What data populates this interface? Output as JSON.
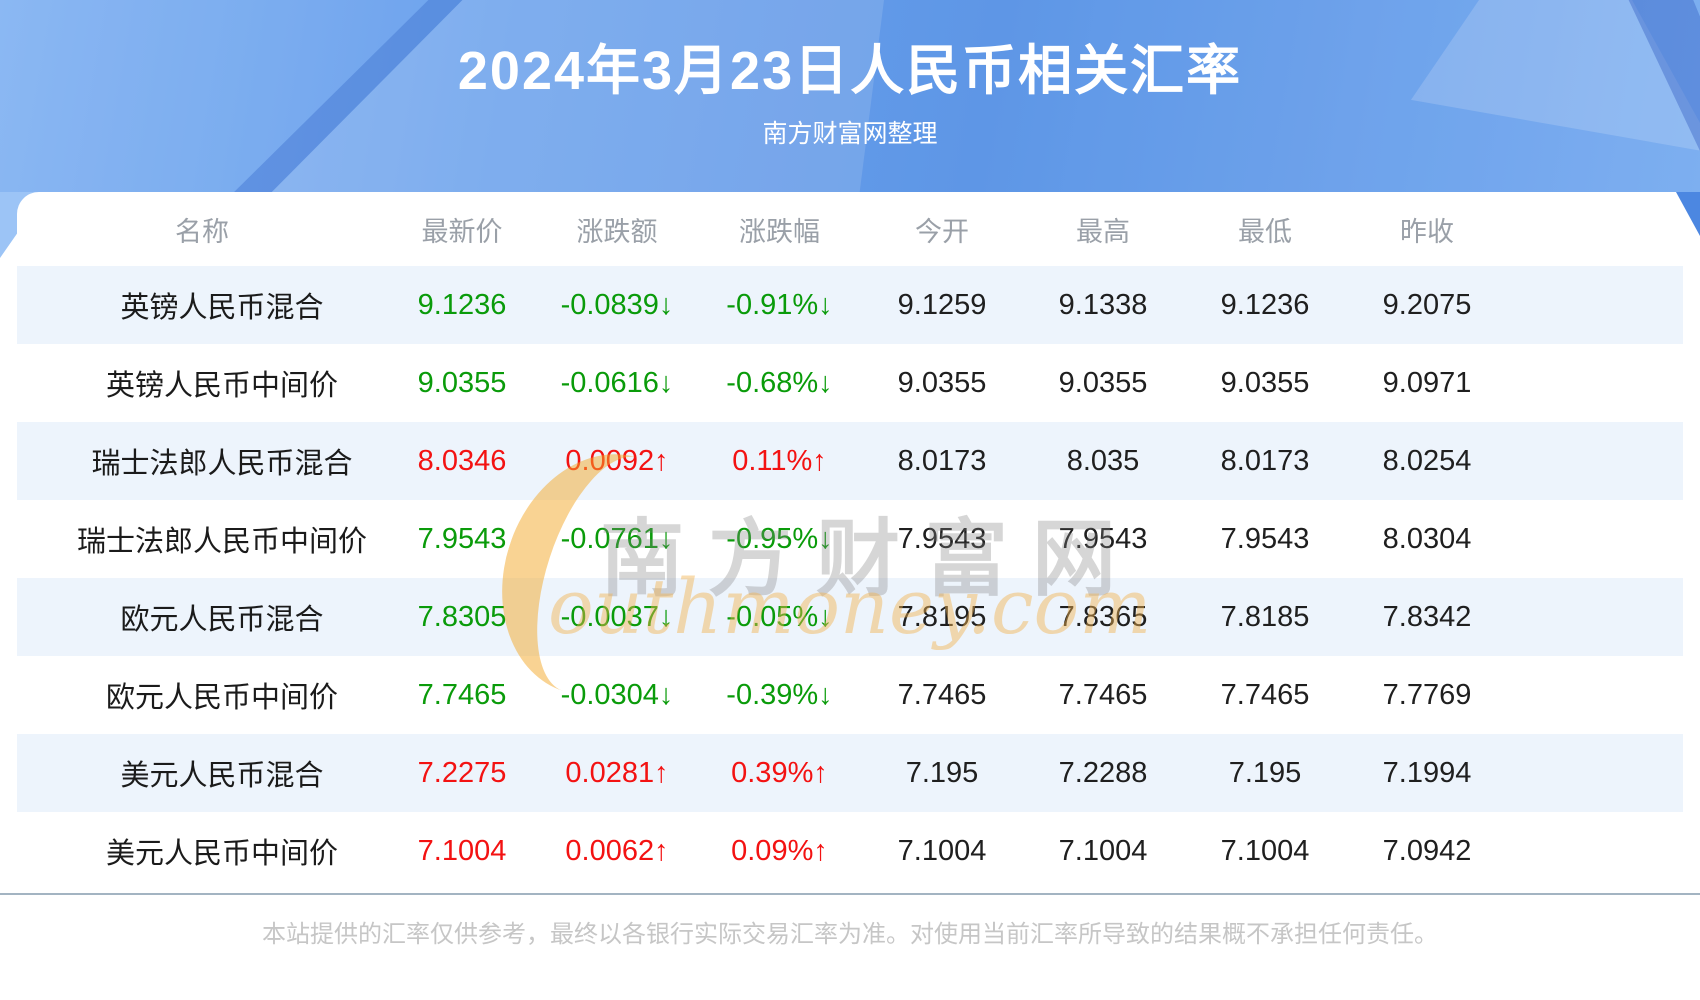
{
  "banner": {
    "title": "2024年3月23日人民币相关汇率",
    "subtitle": "南方财富网整理"
  },
  "chart_data": {
    "type": "table",
    "title": "2024年3月23日人民币相关汇率",
    "columns": [
      "名称",
      "最新价",
      "涨跌额",
      "涨跌幅",
      "今开",
      "最高",
      "最低",
      "昨收"
    ],
    "rows": [
      {
        "name": "英镑人民币混合",
        "latest": "9.1236",
        "change": "-0.0839↓",
        "pct": "-0.91%↓",
        "open": "9.1259",
        "high": "9.1338",
        "low": "9.1236",
        "prev": "9.2075",
        "trend": "down"
      },
      {
        "name": "英镑人民币中间价",
        "latest": "9.0355",
        "change": "-0.0616↓",
        "pct": "-0.68%↓",
        "open": "9.0355",
        "high": "9.0355",
        "low": "9.0355",
        "prev": "9.0971",
        "trend": "down"
      },
      {
        "name": "瑞士法郎人民币混合",
        "latest": "8.0346",
        "change": "0.0092↑",
        "pct": "0.11%↑",
        "open": "8.0173",
        "high": "8.035",
        "low": "8.0173",
        "prev": "8.0254",
        "trend": "up"
      },
      {
        "name": "瑞士法郎人民币中间价",
        "latest": "7.9543",
        "change": "-0.0761↓",
        "pct": "-0.95%↓",
        "open": "7.9543",
        "high": "7.9543",
        "low": "7.9543",
        "prev": "8.0304",
        "trend": "down"
      },
      {
        "name": "欧元人民币混合",
        "latest": "7.8305",
        "change": "-0.0037↓",
        "pct": "-0.05%↓",
        "open": "7.8195",
        "high": "7.8365",
        "low": "7.8185",
        "prev": "7.8342",
        "trend": "down"
      },
      {
        "name": "欧元人民币中间价",
        "latest": "7.7465",
        "change": "-0.0304↓",
        "pct": "-0.39%↓",
        "open": "7.7465",
        "high": "7.7465",
        "low": "7.7465",
        "prev": "7.7769",
        "trend": "down"
      },
      {
        "name": "美元人民币混合",
        "latest": "7.2275",
        "change": "0.0281↑",
        "pct": "0.39%↑",
        "open": "7.195",
        "high": "7.2288",
        "low": "7.195",
        "prev": "7.1994",
        "trend": "up"
      },
      {
        "name": "美元人民币中间价",
        "latest": "7.1004",
        "change": "0.0062↑",
        "pct": "0.09%↑",
        "open": "7.1004",
        "high": "7.1004",
        "low": "7.1004",
        "prev": "7.0942",
        "trend": "up"
      }
    ]
  },
  "watermark": {
    "cn": "南方财富网",
    "en": "outhmoney.com"
  },
  "footer": {
    "disclaimer": "本站提供的汇率仅供参考，最终以各银行实际交易汇率为准。对使用当前汇率所导致的结果概不承担任何责任。"
  },
  "colors": {
    "up": "#f31212",
    "down": "#0a9b0a",
    "banner_blue": "#4e8de6",
    "stripe": "#edf4fc"
  }
}
